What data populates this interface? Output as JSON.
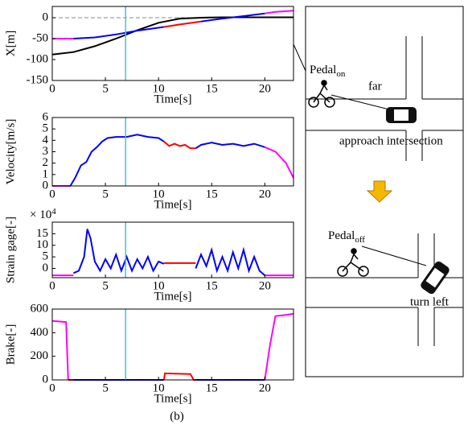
{
  "chart_data": [
    {
      "type": "line",
      "ylabel": "X[m]",
      "xlabel": "Time[s]",
      "xlim": [
        0,
        22.7
      ],
      "xticks": [
        0,
        5,
        10,
        15,
        20
      ],
      "ylim": [
        -150,
        27
      ],
      "yticks": [
        -150,
        -100,
        -50,
        0
      ],
      "vline": 6.9,
      "vline_color": "#40c8c8",
      "hline": 0,
      "series": [
        {
          "color": "#000000",
          "x": [
            0,
            2,
            4,
            6,
            8,
            10,
            12,
            14,
            16,
            18,
            20,
            22.7
          ],
          "values": [
            -88,
            -82,
            -68,
            -50,
            -30,
            -12,
            -2,
            0,
            1,
            1,
            1,
            1
          ]
        },
        {
          "color": "#ff00ff",
          "x": [
            0,
            2
          ],
          "values": [
            -50,
            -50
          ]
        },
        {
          "color": "#0000ff",
          "x": [
            2,
            4,
            6,
            8,
            10.5
          ],
          "values": [
            -50,
            -47,
            -40,
            -31,
            -22
          ]
        },
        {
          "color": "#ff0000",
          "x": [
            10.5,
            12,
            14
          ],
          "values": [
            -22,
            -16,
            -9
          ]
        },
        {
          "color": "#0000ff",
          "x": [
            14,
            16,
            18,
            20
          ],
          "values": [
            -9,
            -2,
            4,
            10
          ]
        },
        {
          "color": "#ff00ff",
          "x": [
            20,
            21,
            22.7
          ],
          "values": [
            10,
            14,
            17
          ]
        }
      ]
    },
    {
      "type": "line",
      "ylabel": "Velocity[m/s]",
      "xlabel": "Time[s]",
      "xlim": [
        0,
        22.7
      ],
      "xticks": [
        0,
        5,
        10,
        15,
        20
      ],
      "ylim": [
        0,
        6
      ],
      "yticks": [
        0,
        1,
        2,
        3,
        4,
        5,
        6
      ],
      "vline": 6.9,
      "vline_color": "#40c8c8",
      "series": [
        {
          "color": "#ff00ff",
          "x": [
            0,
            1.7
          ],
          "values": [
            0,
            0
          ]
        },
        {
          "color": "#0000ff",
          "x": [
            1.7,
            2.2,
            2.7,
            3.2,
            3.7,
            4.2,
            4.7,
            5.2,
            6,
            7,
            8,
            9,
            10,
            10.5
          ],
          "values": [
            0,
            0.8,
            1.8,
            2.1,
            3,
            3.4,
            3.9,
            4.2,
            4.3,
            4.3,
            4.5,
            4.3,
            4.2,
            3.9
          ]
        },
        {
          "color": "#ff0000",
          "x": [
            10.5,
            11,
            11.5,
            12,
            12.5,
            13,
            13.5
          ],
          "values": [
            3.9,
            3.5,
            3.7,
            3.5,
            3.6,
            3.3,
            3.3
          ]
        },
        {
          "color": "#0000ff",
          "x": [
            13.5,
            14,
            15,
            16,
            17,
            18,
            19,
            20
          ],
          "values": [
            3.3,
            3.6,
            3.8,
            3.6,
            3.7,
            3.5,
            3.7,
            3.4
          ]
        },
        {
          "color": "#ff00ff",
          "x": [
            20,
            21,
            22,
            22.7
          ],
          "values": [
            3.4,
            3.0,
            2.0,
            0.7
          ]
        }
      ]
    },
    {
      "type": "line",
      "ylabel": "Strain gage[-]",
      "xlabel": "Time[s]",
      "exponent": {
        "base": "× 10",
        "power": "4"
      },
      "xlim": [
        0,
        22.7
      ],
      "xticks": [
        0,
        5,
        10,
        15,
        20
      ],
      "ylim": [
        -4,
        20
      ],
      "yticks": [
        0,
        5,
        10,
        15
      ],
      "vline": 6.9,
      "vline_color": "#40c8c8",
      "series": [
        {
          "color": "#ff00ff",
          "x": [
            0,
            2
          ],
          "values": [
            -3,
            -3
          ]
        },
        {
          "color": "#0000ff",
          "x": [
            2,
            2.5,
            3,
            3.3,
            3.6,
            4,
            4.5,
            5,
            5.5,
            6,
            6.5,
            7,
            7.5,
            8,
            8.5,
            9,
            9.5,
            10,
            10.5
          ],
          "values": [
            -2,
            -1,
            5,
            17,
            13,
            3,
            -1,
            4,
            0,
            6,
            -1,
            5,
            -1,
            4,
            0,
            5,
            -1,
            3,
            2
          ]
        },
        {
          "color": "#ff0000",
          "x": [
            10.5,
            12,
            13.5
          ],
          "values": [
            2.3,
            2.3,
            2.3
          ]
        },
        {
          "color": "#0000ff",
          "x": [
            13.5,
            14,
            14.5,
            15,
            15.5,
            16,
            16.5,
            17,
            17.5,
            18,
            18.5,
            19,
            19.5,
            20
          ],
          "values": [
            0,
            6,
            1,
            8,
            -1,
            5,
            -1,
            7,
            0,
            8,
            -1,
            5,
            -1,
            -3
          ]
        },
        {
          "color": "#ff00ff",
          "x": [
            20,
            22.7
          ],
          "values": [
            -3,
            -3
          ]
        }
      ]
    },
    {
      "type": "line",
      "ylabel": "Brake[-]",
      "xlabel": "Time[s]",
      "xlim": [
        0,
        22.7
      ],
      "xticks": [
        0,
        5,
        10,
        15,
        20
      ],
      "ylim": [
        0,
        600
      ],
      "yticks": [
        0,
        200,
        400,
        600
      ],
      "vline": 6.9,
      "vline_color": "#40c8c8",
      "series": [
        {
          "color": "#ff00ff",
          "x": [
            0,
            1.3,
            1.5
          ],
          "values": [
            500,
            490,
            0
          ]
        },
        {
          "color": "#ff0000",
          "x": [
            1.5,
            2
          ],
          "values": [
            0,
            0
          ]
        },
        {
          "color": "#0000ff",
          "x": [
            2,
            10.5
          ],
          "values": [
            0,
            0
          ]
        },
        {
          "color": "#ff0000",
          "x": [
            10.5,
            10.6,
            13,
            13.3,
            13.5
          ],
          "values": [
            0,
            55,
            50,
            0,
            0
          ]
        },
        {
          "color": "#0000ff",
          "x": [
            13.5,
            20
          ],
          "values": [
            0,
            0
          ]
        },
        {
          "color": "#ff00ff",
          "x": [
            20,
            20.5,
            21,
            22,
            22.7
          ],
          "values": [
            0,
            300,
            540,
            550,
            560
          ]
        }
      ]
    }
  ],
  "diagram": {
    "pedal_on": {
      "text": "Pedal",
      "sub": "on"
    },
    "far": "far",
    "approach": "approach intersection",
    "pedal_off": {
      "text": "Pedal",
      "sub": "off"
    },
    "turn": "turn left"
  },
  "caption": "(b)"
}
